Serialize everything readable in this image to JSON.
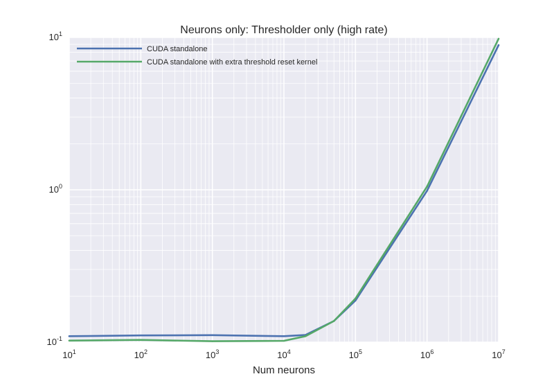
{
  "chart_data": {
    "type": "line",
    "title": "Neurons only: Thresholder only (high rate)",
    "xlabel": "Num neurons",
    "ylabel": "",
    "x_scale": "log",
    "y_scale": "log",
    "xlim": [
      10,
      10000000
    ],
    "ylim": [
      0.1,
      10
    ],
    "grid": true,
    "legend_position": "top-left",
    "x_ticks": [
      {
        "base": "10",
        "exp": "1"
      },
      {
        "base": "10",
        "exp": "2"
      },
      {
        "base": "10",
        "exp": "3"
      },
      {
        "base": "10",
        "exp": "4"
      },
      {
        "base": "10",
        "exp": "5"
      },
      {
        "base": "10",
        "exp": "6"
      },
      {
        "base": "10",
        "exp": "7"
      }
    ],
    "y_ticks": [
      {
        "base": "10",
        "exp": "-1"
      },
      {
        "base": "10",
        "exp": "0"
      },
      {
        "base": "10",
        "exp": "1"
      }
    ],
    "background_color": "#EAEAF2",
    "grid_color": "#FFFFFF",
    "series": [
      {
        "name": "CUDA standalone",
        "color": "#4C72B0",
        "points": [
          [
            10,
            0.1095
          ],
          [
            100,
            0.1108
          ],
          [
            1000,
            0.1112
          ],
          [
            10000,
            0.1095
          ],
          [
            20000,
            0.1115
          ],
          [
            50000,
            0.1378
          ],
          [
            100000,
            0.1878
          ],
          [
            1000000,
            0.9848
          ],
          [
            10000000,
            8.9
          ]
        ]
      },
      {
        "name": "CUDA standalone with extra threshold reset kernel",
        "color": "#55A868",
        "points": [
          [
            10,
            0.1025
          ],
          [
            100,
            0.1035
          ],
          [
            1000,
            0.1015
          ],
          [
            10000,
            0.1021
          ],
          [
            20000,
            0.1095
          ],
          [
            50000,
            0.1378
          ],
          [
            100000,
            0.1935
          ],
          [
            1000000,
            1.05
          ],
          [
            10000000,
            9.8
          ]
        ]
      }
    ]
  }
}
